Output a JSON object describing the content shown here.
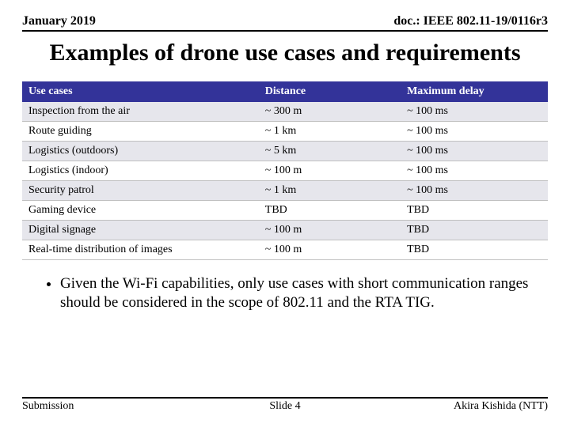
{
  "header": {
    "date": "January 2019",
    "docref": "doc.: IEEE 802.11-19/0116r3"
  },
  "title": "Examples of drone use cases and requirements",
  "table": {
    "columns": [
      "Use cases",
      "Distance",
      "Maximum delay"
    ],
    "rows": [
      {
        "cells": [
          "Inspection from the air",
          "~ 300 m",
          "~ 100 ms"
        ],
        "alt": true
      },
      {
        "cells": [
          "Route guiding",
          "~ 1 km",
          "~ 100 ms"
        ],
        "alt": false
      },
      {
        "cells": [
          "Logistics (outdoors)",
          "~ 5 km",
          "~ 100 ms"
        ],
        "alt": true
      },
      {
        "cells": [
          "Logistics (indoor)",
          "~ 100 m",
          "~ 100 ms"
        ],
        "alt": false
      },
      {
        "cells": [
          "Security patrol",
          "~ 1 km",
          "~ 100 ms"
        ],
        "alt": true
      },
      {
        "cells": [
          "Gaming device",
          "TBD",
          "TBD"
        ],
        "alt": false
      },
      {
        "cells": [
          "Digital signage",
          "~ 100 m",
          "TBD"
        ],
        "alt": true
      },
      {
        "cells": [
          "Real-time distribution of images",
          "~ 100 m",
          "TBD"
        ],
        "alt": false
      }
    ]
  },
  "bullet": "Given the Wi-Fi capabilities, only use cases with short communication ranges should be considered in the scope of 802.11 and the RTA TIG.",
  "footer": {
    "left": "Submission",
    "center": "Slide 4",
    "right": "Akira Kishida (NTT)"
  },
  "style": {
    "header_bg": "#333399",
    "header_text": "#ffffff",
    "alt_row_bg": "#e6e6ec",
    "border_color": "#c0c0c0",
    "text_color": "#000000",
    "background": "#ffffff"
  }
}
